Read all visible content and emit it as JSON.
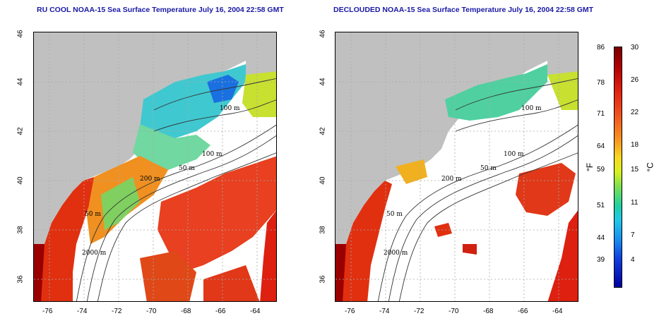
{
  "titles": {
    "left": "RU COOL NOAA-15 Sea Surface Temperature July 16, 2004 22:58 GMT",
    "right": "DECLOUDED NOAA-15 Sea Surface Temperature July 16, 2004 22:58 GMT"
  },
  "axes": {
    "lon_ticks": [
      "-76",
      "-74",
      "-72",
      "-70",
      "-68",
      "-66",
      "-64"
    ],
    "lat_ticks": [
      "46",
      "44",
      "42",
      "40",
      "38",
      "36"
    ]
  },
  "contour_labels": {
    "m100a": "100 m",
    "m100b": "100 m",
    "m50a": "50 m",
    "m200": "200 m",
    "m50b": "50 m",
    "m2000": "2000 m"
  },
  "colorbar": {
    "fahrenheit_label": "°F",
    "celsius_label": "°C",
    "fahrenheit_ticks": [
      "86",
      "78",
      "71",
      "64",
      "59",
      "51",
      "44",
      "39"
    ],
    "celsius_ticks": [
      "30",
      "26",
      "22",
      "18",
      "15",
      "11",
      "7",
      "4"
    ]
  },
  "colors": {
    "land": "#c0c0c0",
    "ocean_cloud": "#ffffff",
    "title": "#1a1aa6"
  }
}
